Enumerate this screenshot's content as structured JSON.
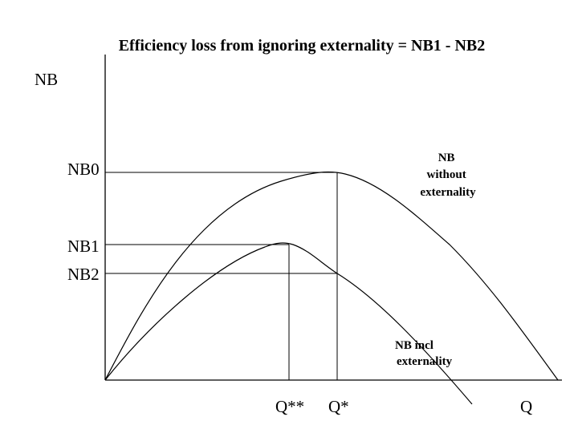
{
  "title": "Efficiency loss from ignoring externality = NB1 - NB2",
  "axes": {
    "y_label": "NB",
    "x_label": "Q"
  },
  "y_ticks": {
    "nb0": "NB0",
    "nb1": "NB1",
    "nb2": "NB2"
  },
  "x_ticks": {
    "q_double_star": "Q**",
    "q_star": "Q*"
  },
  "curves": {
    "without": [
      "NB",
      "without",
      "externality"
    ],
    "incl": [
      "NB incl",
      "externality"
    ]
  },
  "colors": {
    "line": "#000000",
    "background": "#ffffff"
  }
}
